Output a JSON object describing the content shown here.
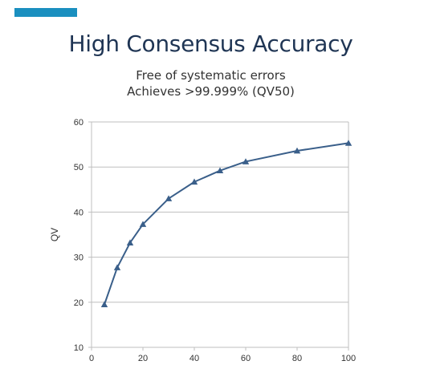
{
  "slide": {
    "title": "High Consensus Accuracy",
    "subtitle_lines": [
      "Free of systematic errors",
      "Achieves >99.999% (QV50)"
    ]
  },
  "colors": {
    "accent_bar": "#1a8fbf",
    "title": "#1f3554",
    "series_line": "#3a5f8a",
    "grid": "#bfbfbf"
  },
  "chart_data": {
    "type": "line",
    "title": "",
    "xlabel": "",
    "ylabel": "QV",
    "xlim": [
      0,
      100
    ],
    "ylim": [
      10,
      60
    ],
    "x_ticks": [
      0,
      20,
      40,
      60,
      80,
      100
    ],
    "y_ticks": [
      10,
      20,
      30,
      40,
      50,
      60
    ],
    "grid": "horizontal",
    "marker": "triangle",
    "series": [
      {
        "x": [
          5,
          10,
          15,
          20,
          30,
          40,
          50,
          60,
          80,
          100
        ],
        "values": [
          19.5,
          27.7,
          33.2,
          37.3,
          43.0,
          46.7,
          49.2,
          51.2,
          53.6,
          55.3
        ]
      }
    ]
  }
}
